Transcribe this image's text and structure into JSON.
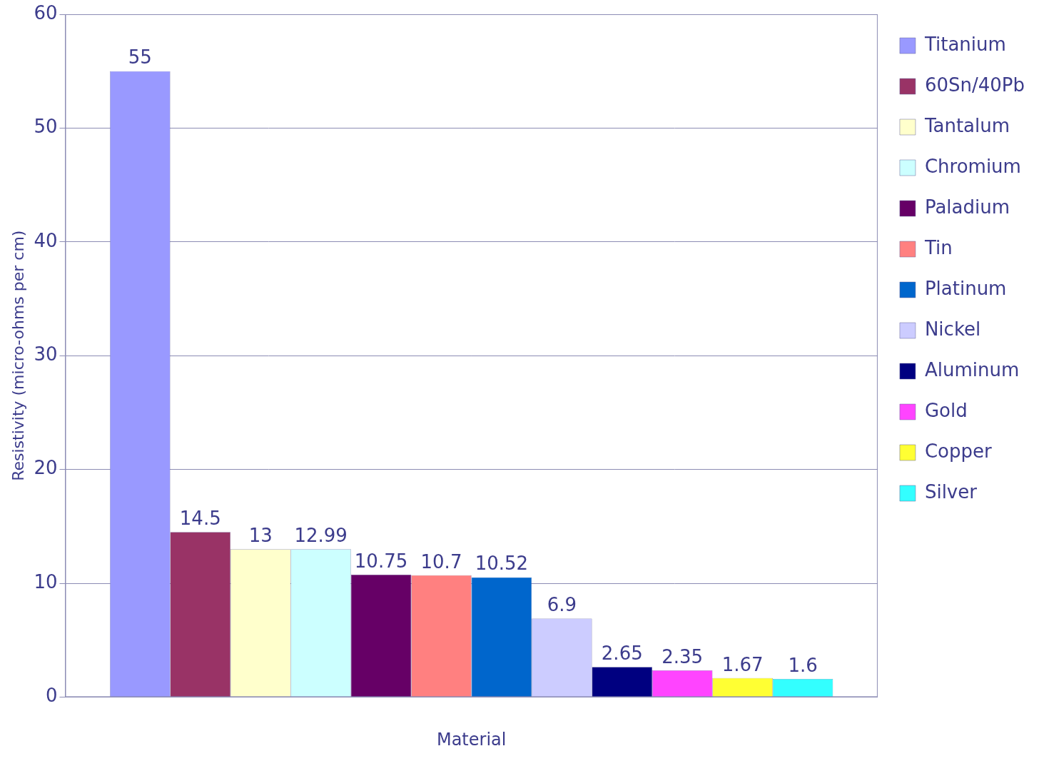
{
  "chart_data": {
    "type": "bar",
    "x_label": "Material",
    "y_label": "Resistivity (micro-ohms per cm)",
    "categories": [
      null
    ],
    "series": [
      {
        "name": "Titanium",
        "color": "#9999ff",
        "values": [
          55
        ]
      },
      {
        "name": "60Sn/40Pb",
        "color": "#993366",
        "values": [
          14.5
        ]
      },
      {
        "name": "Tantalum",
        "color": "#ffffcc",
        "values": [
          13
        ]
      },
      {
        "name": "Chromium",
        "color": "#ccffff",
        "values": [
          12.99
        ]
      },
      {
        "name": "Paladium",
        "color": "#660066",
        "values": [
          10.75
        ]
      },
      {
        "name": "Tin",
        "color": "#ff8080",
        "values": [
          10.7
        ]
      },
      {
        "name": "Platinum",
        "color": "#0066cc",
        "values": [
          10.52
        ]
      },
      {
        "name": "Nickel",
        "color": "#ccccff",
        "values": [
          6.9
        ]
      },
      {
        "name": "Aluminum",
        "color": "#000080",
        "values": [
          2.65
        ]
      },
      {
        "name": "Gold",
        "color": "#ff44ff",
        "values": [
          2.35
        ]
      },
      {
        "name": "Copper",
        "color": "#ffff33",
        "values": [
          1.67
        ]
      },
      {
        "name": "Silver",
        "color": "#33ffff",
        "values": [
          1.6
        ]
      }
    ],
    "ylim": [
      0,
      60
    ],
    "yticks": [
      0,
      10,
      20,
      30,
      40,
      50,
      60
    ],
    "grid": true,
    "legend": "right",
    "data_labels": true
  }
}
